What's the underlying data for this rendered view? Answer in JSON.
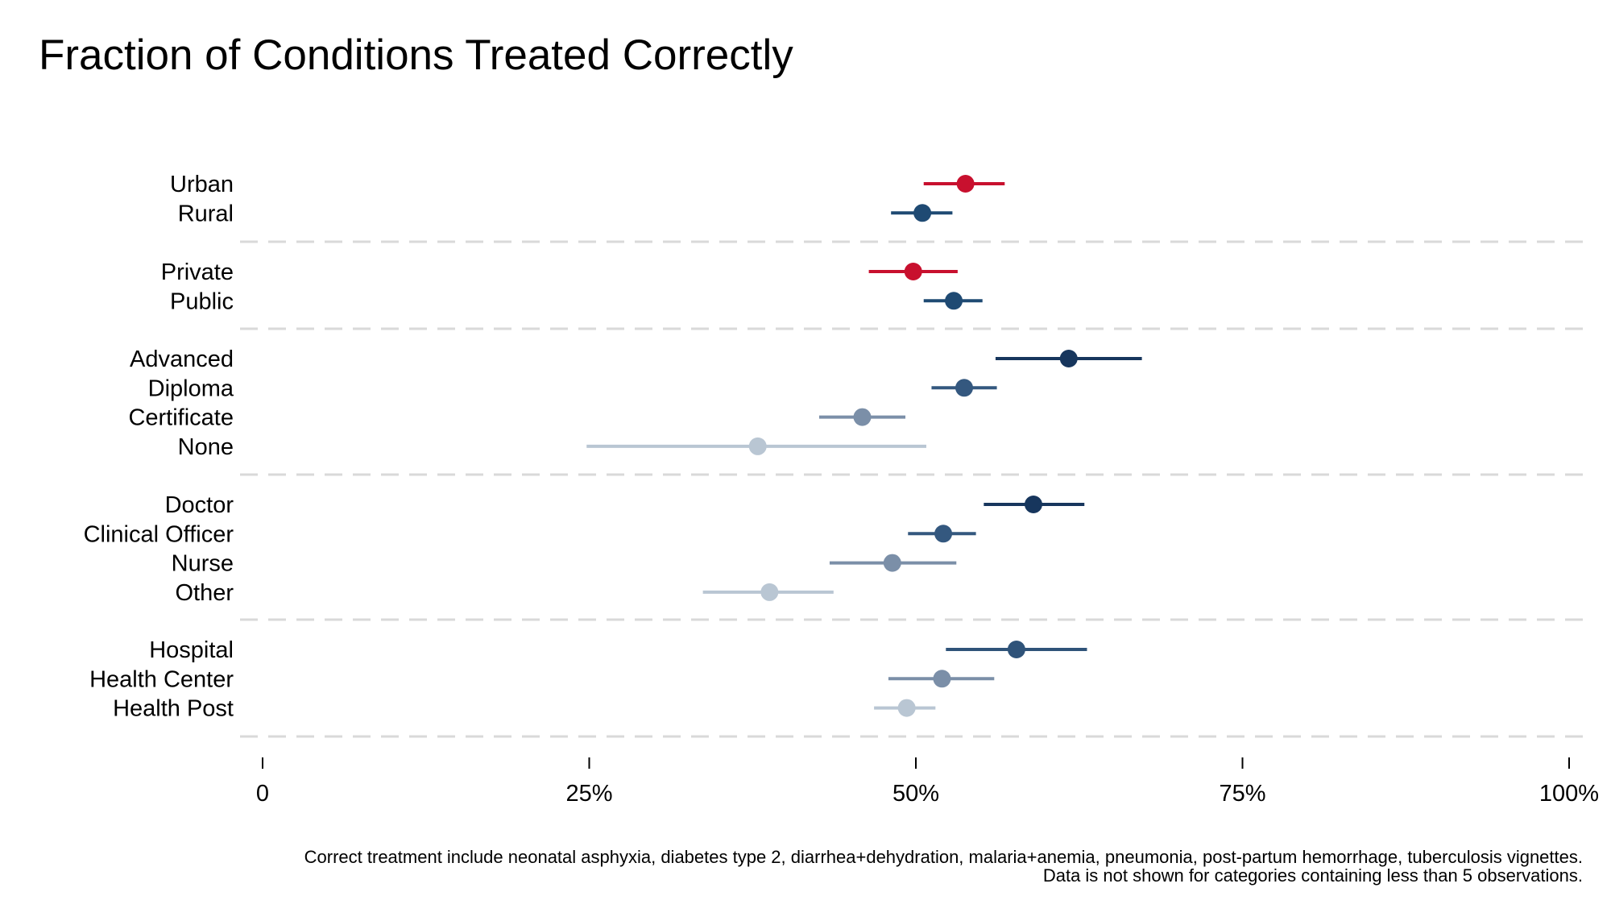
{
  "chart_data": {
    "type": "scatter",
    "title": "Fraction of Conditions Treated Correctly",
    "xlabel": "",
    "ylabel": "",
    "xlim": [
      0,
      100
    ],
    "x_ticks": [
      {
        "value": 0,
        "label": "0"
      },
      {
        "value": 25,
        "label": "25%"
      },
      {
        "value": 50,
        "label": "50%"
      },
      {
        "value": 75,
        "label": "75%"
      },
      {
        "value": 100,
        "label": "100%"
      }
    ],
    "grid": false,
    "group_separators": "dashed",
    "groups": [
      {
        "rows": [
          {
            "label": "Urban",
            "estimate": 53.8,
            "ci": [
              50.6,
              56.8
            ],
            "color": "#c8102e"
          },
          {
            "label": "Rural",
            "estimate": 50.5,
            "ci": [
              48.1,
              52.8
            ],
            "color": "#1f4a73"
          }
        ]
      },
      {
        "rows": [
          {
            "label": "Private",
            "estimate": 49.8,
            "ci": [
              46.4,
              53.2
            ],
            "color": "#c8102e"
          },
          {
            "label": "Public",
            "estimate": 52.9,
            "ci": [
              50.6,
              55.1
            ],
            "color": "#1f4a73"
          }
        ]
      },
      {
        "rows": [
          {
            "label": "Advanced",
            "estimate": 61.7,
            "ci": [
              56.1,
              67.3
            ],
            "color": "#17365d"
          },
          {
            "label": "Diploma",
            "estimate": 53.7,
            "ci": [
              51.2,
              56.2
            ],
            "color": "#34587f"
          },
          {
            "label": "Certificate",
            "estimate": 45.9,
            "ci": [
              42.6,
              49.2
            ],
            "color": "#7b8fa8"
          },
          {
            "label": "None",
            "estimate": 37.9,
            "ci": [
              24.8,
              50.8
            ],
            "color": "#b9c6d3"
          }
        ]
      },
      {
        "rows": [
          {
            "label": "Doctor",
            "estimate": 59.0,
            "ci": [
              55.2,
              62.9
            ],
            "color": "#17365d"
          },
          {
            "label": "Clinical Officer",
            "estimate": 52.1,
            "ci": [
              49.4,
              54.6
            ],
            "color": "#34587f"
          },
          {
            "label": "Nurse",
            "estimate": 48.2,
            "ci": [
              43.4,
              53.1
            ],
            "color": "#7b8fa8"
          },
          {
            "label": "Other",
            "estimate": 38.8,
            "ci": [
              33.7,
              43.7
            ],
            "color": "#b9c6d3"
          }
        ]
      },
      {
        "rows": [
          {
            "label": "Hospital",
            "estimate": 57.7,
            "ci": [
              52.3,
              63.1
            ],
            "color": "#2f5379"
          },
          {
            "label": "Health Center",
            "estimate": 52.0,
            "ci": [
              47.9,
              56.0
            ],
            "color": "#7b8fa8"
          },
          {
            "label": "Health Post",
            "estimate": 49.3,
            "ci": [
              46.8,
              51.5
            ],
            "color": "#b9c6d3"
          }
        ]
      }
    ],
    "notes": [
      "Correct treatment include neonatal asphyxia, diabetes type 2, diarrhea+dehydration, malaria+anemia, pneumonia, post-partum hemorrhage, tuberculosis vignettes.",
      "Data is not shown for categories containing less than 5 observations."
    ]
  }
}
